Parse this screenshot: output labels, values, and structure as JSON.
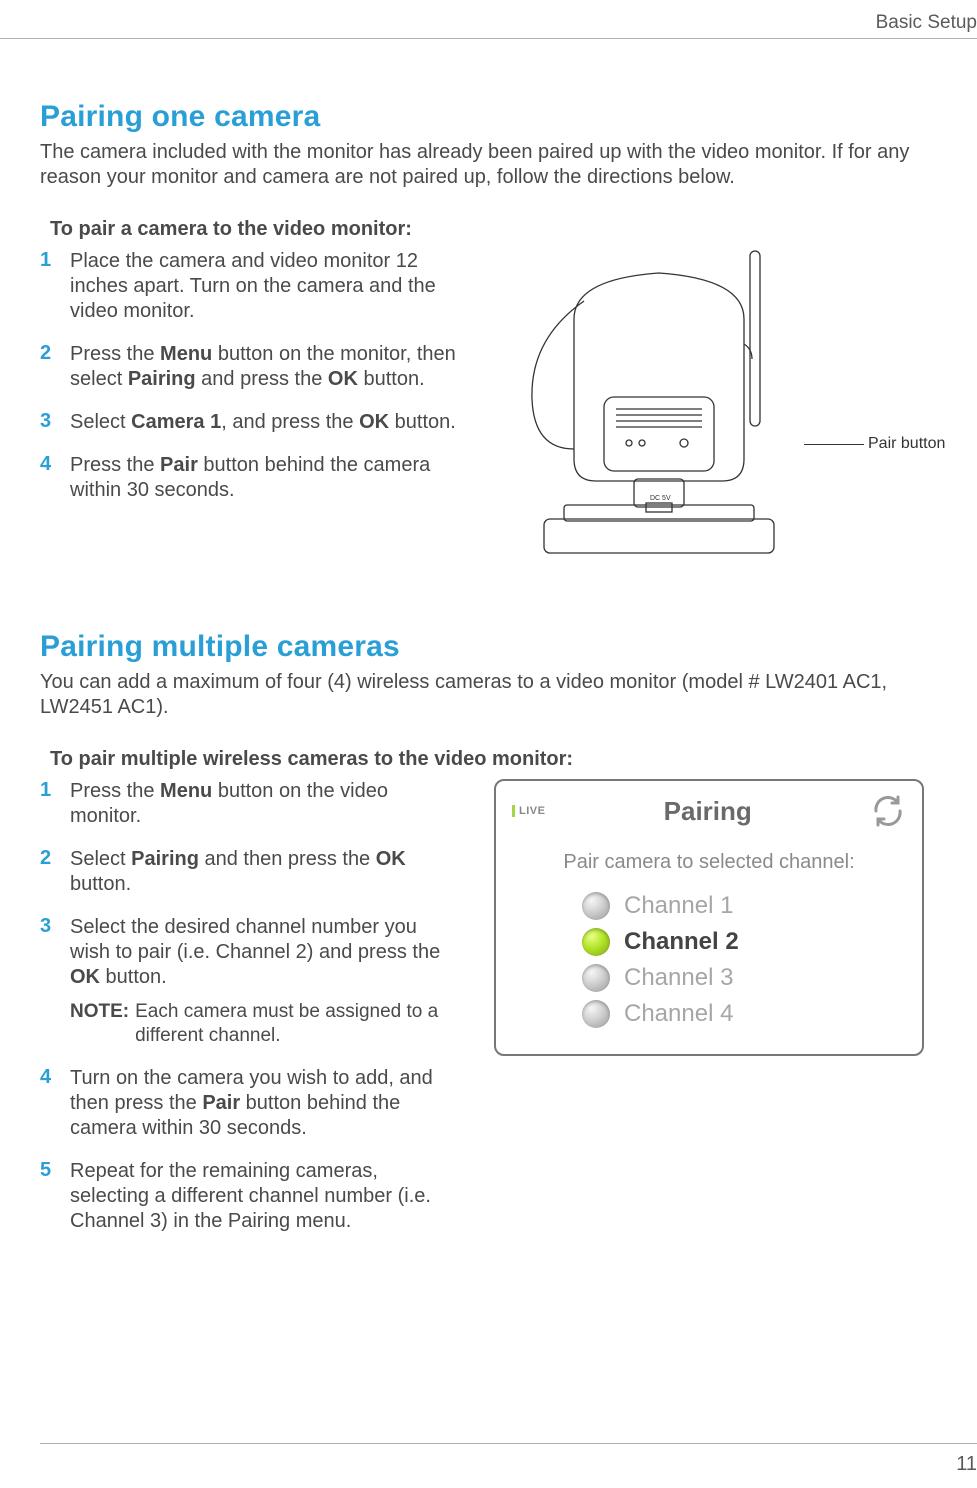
{
  "header": {
    "section": "Basic Setup"
  },
  "page_number": "11",
  "colors": {
    "heading": "#2a9fd6",
    "body_text": "#4a4a4a",
    "step_num": "#2a9fd6",
    "rule": "#b0b0b0",
    "radio_active": "#b8e82f",
    "radio_inactive": "#bdbdbd",
    "chan_inactive_text": "#a6a6a6",
    "chan_active_text": "#444444"
  },
  "section1": {
    "title": "Pairing one camera",
    "intro": "The camera included with the monitor has already been paired up with the video monitor. If for any reason your monitor and camera are not paired up, follow the directions below.",
    "subhead": "To pair a camera to the video monitor:",
    "steps": [
      {
        "n": "1",
        "html": "Place the camera and video monitor 12 inches apart. Turn on the camera and the video monitor."
      },
      {
        "n": "2",
        "html": "Press the <b>Menu</b> button on the monitor, then select <b>Pairing</b> and press the <b>OK</b> button."
      },
      {
        "n": "3",
        "html": "Select <b>Camera 1</b>, and press the <b>OK</b> button."
      },
      {
        "n": "4",
        "html": "Press the <b>Pair</b> button behind the camera within 30 seconds."
      }
    ],
    "callout": "Pair button",
    "camera_illustration": {
      "type": "line-drawing",
      "stroke": "#333333",
      "fill": "#ffffff",
      "dc_label": "DC 5V"
    }
  },
  "section2": {
    "title": "Pairing multiple cameras",
    "intro": "You can add a maximum of four (4) wireless cameras to a video monitor (model # LW2401 AC1, LW2451 AC1).",
    "subhead": "To pair multiple wireless cameras to the video monitor:",
    "steps": [
      {
        "n": "1",
        "html": "Press the <b>Menu</b> button on the video monitor."
      },
      {
        "n": "2",
        "html": "Select <b>Pairing</b> and then press the <b>OK</b> button."
      },
      {
        "n": "3",
        "html": "Select the desired channel number you wish to pair (i.e. Channel 2) and press the <b>OK</b> button.",
        "note_label": "NOTE:",
        "note": "Each camera must be assigned to a different channel."
      },
      {
        "n": "4",
        "html": "Turn on the camera you wish to add, and then press the <b>Pair</b> button behind the camera within 30 seconds."
      },
      {
        "n": "5",
        "html": "Repeat for the remaining cameras, selecting a different channel number (i.e. Channel 3) in the Pairing menu."
      }
    ],
    "screenshot": {
      "live_badge": "LIVE",
      "title": "Pairing",
      "subtitle": "Pair camera to selected channel:",
      "channels": [
        {
          "label": "Channel 1",
          "active": false
        },
        {
          "label": "Channel 2",
          "active": true
        },
        {
          "label": "Channel 3",
          "active": false
        },
        {
          "label": "Channel 4",
          "active": false
        }
      ]
    }
  }
}
